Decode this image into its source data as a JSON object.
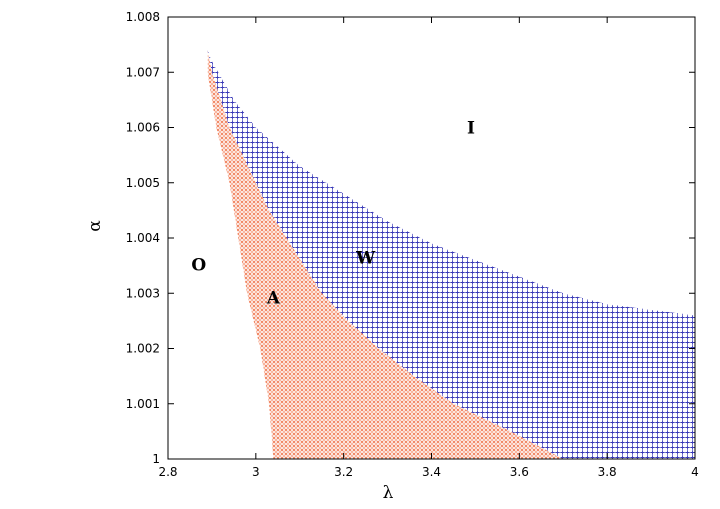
{
  "chart_data": {
    "type": "scatter",
    "xlabel": "λ",
    "ylabel": "α",
    "xlim": [
      2.8,
      4.0
    ],
    "ylim": [
      1.0,
      1.008
    ],
    "x_ticks": [
      "2.8",
      "3",
      "3.2",
      "3.4",
      "3.6",
      "3.8",
      "4"
    ],
    "y_ticks": [
      "1",
      "1.001",
      "1.002",
      "1.003",
      "1.004",
      "1.005",
      "1.006",
      "1.007",
      "1.008"
    ],
    "grid": false,
    "colors": {
      "W": "#3a3ab8",
      "A": "#f07850"
    },
    "series": [
      {
        "label": "W",
        "marker": "plus",
        "color": "#3a3ab8",
        "boundary_lower_x": [
          [
            1.0,
            3.7
          ],
          [
            1.0005,
            3.58
          ],
          [
            1.001,
            3.45
          ],
          [
            1.0015,
            3.36
          ],
          [
            1.002,
            3.28
          ],
          [
            1.0025,
            3.21
          ],
          [
            1.003,
            3.15
          ],
          [
            1.0035,
            3.11
          ],
          [
            1.004,
            3.07
          ],
          [
            1.0045,
            3.03
          ],
          [
            1.005,
            3.0
          ],
          [
            1.0055,
            2.97
          ],
          [
            1.006,
            2.94
          ],
          [
            1.0065,
            2.92
          ],
          [
            1.007,
            2.9
          ],
          [
            1.0074,
            2.89
          ]
        ],
        "boundary_upper_y": [
          [
            2.89,
            1.0074
          ],
          [
            2.9,
            1.0072
          ],
          [
            2.95,
            1.0065
          ],
          [
            3.0,
            1.006
          ],
          [
            3.1,
            1.0053
          ],
          [
            3.2,
            1.0048
          ],
          [
            3.3,
            1.0043
          ],
          [
            3.4,
            1.0039
          ],
          [
            3.5,
            1.0036
          ],
          [
            3.6,
            1.0033
          ],
          [
            3.7,
            1.003
          ],
          [
            3.8,
            1.0028
          ],
          [
            3.9,
            1.0027
          ],
          [
            4.0,
            1.0026
          ]
        ]
      },
      {
        "label": "A",
        "marker": "cross",
        "color": "#f07850",
        "boundary_lower_x": [
          [
            1.0,
            3.04
          ],
          [
            1.001,
            3.03
          ],
          [
            1.002,
            3.01
          ],
          [
            1.003,
            2.98
          ],
          [
            1.004,
            2.96
          ],
          [
            1.005,
            2.94
          ],
          [
            1.006,
            2.91
          ],
          [
            1.007,
            2.89
          ],
          [
            1.0073,
            2.89
          ]
        ]
      }
    ],
    "annotations": [
      {
        "text": "I",
        "x": 3.49,
        "y": 1.006
      },
      {
        "text": "W",
        "x": 3.25,
        "y": 1.00365
      },
      {
        "text": "O",
        "x": 2.87,
        "y": 1.00352
      },
      {
        "text": "A",
        "x": 3.04,
        "y": 1.00292
      }
    ]
  }
}
